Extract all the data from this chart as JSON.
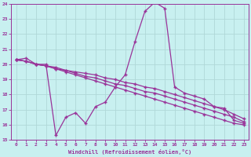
{
  "xlabel": "Windchill (Refroidissement éolien,°C)",
  "ylabel": "",
  "bg_color": "#c8f0f0",
  "grid_color": "#b0d8d8",
  "line_color": "#993399",
  "spine_color": "#993399",
  "xlim": [
    -0.5,
    23.5
  ],
  "ylim": [
    15,
    24
  ],
  "xticks": [
    0,
    1,
    2,
    3,
    4,
    5,
    6,
    7,
    8,
    9,
    10,
    11,
    12,
    13,
    14,
    15,
    16,
    17,
    18,
    19,
    20,
    21,
    22,
    23
  ],
  "yticks": [
    15,
    16,
    17,
    18,
    19,
    20,
    21,
    22,
    23,
    24
  ],
  "series1_x": [
    0,
    1,
    2,
    3,
    4,
    5,
    6,
    7,
    8,
    9,
    10,
    11,
    12,
    13,
    14,
    15,
    16,
    17,
    18,
    19,
    20,
    21,
    22,
    23
  ],
  "series1_y": [
    20.3,
    20.4,
    20.0,
    20.0,
    15.3,
    16.5,
    16.8,
    16.1,
    17.2,
    17.5,
    18.5,
    19.3,
    21.5,
    23.5,
    24.1,
    23.7,
    18.5,
    18.1,
    17.9,
    17.7,
    17.2,
    17.1,
    16.3,
    16.1
  ],
  "series2_x": [
    0,
    1,
    2,
    3,
    4,
    5,
    6,
    7,
    8,
    9,
    10,
    11,
    12,
    13,
    14,
    15,
    16,
    17,
    18,
    19,
    20,
    21,
    22,
    23
  ],
  "series2_y": [
    20.3,
    20.2,
    20.0,
    19.9,
    19.8,
    19.6,
    19.5,
    19.4,
    19.3,
    19.1,
    19.0,
    18.8,
    18.7,
    18.5,
    18.4,
    18.2,
    18.0,
    17.8,
    17.6,
    17.4,
    17.2,
    17.0,
    16.7,
    16.4
  ],
  "series3_x": [
    0,
    1,
    2,
    3,
    4,
    5,
    6,
    7,
    8,
    9,
    10,
    11,
    12,
    13,
    14,
    15,
    16,
    17,
    18,
    19,
    20,
    21,
    22,
    23
  ],
  "series3_y": [
    20.3,
    20.2,
    20.0,
    19.9,
    19.7,
    19.5,
    19.3,
    19.1,
    18.9,
    18.7,
    18.5,
    18.3,
    18.1,
    17.9,
    17.7,
    17.5,
    17.3,
    17.1,
    16.9,
    16.7,
    16.5,
    16.3,
    16.1,
    16.0
  ],
  "series4_x": [
    0,
    1,
    2,
    3,
    4,
    5,
    6,
    7,
    8,
    9,
    10,
    11,
    12,
    13,
    14,
    15,
    16,
    17,
    18,
    19,
    20,
    21,
    22,
    23
  ],
  "series4_y": [
    20.3,
    20.2,
    20.0,
    19.9,
    19.7,
    19.6,
    19.4,
    19.2,
    19.1,
    18.9,
    18.7,
    18.6,
    18.4,
    18.2,
    18.1,
    17.9,
    17.7,
    17.5,
    17.3,
    17.1,
    16.9,
    16.7,
    16.5,
    16.2
  ]
}
